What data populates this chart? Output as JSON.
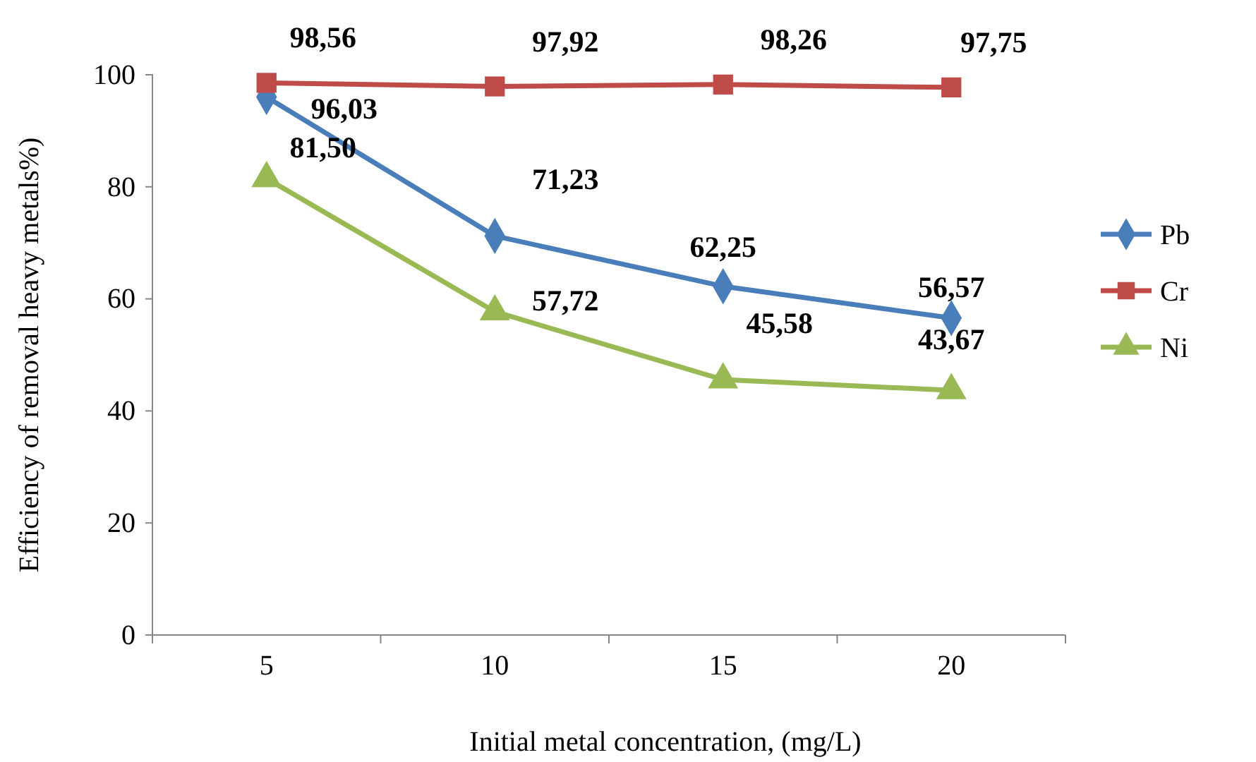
{
  "chart_data": {
    "type": "line",
    "xlabel": "Initial  metal concentration, (mg/L)",
    "ylabel": "Efficiency of removal heavy metals%)",
    "categories": [
      "5",
      "10",
      "15",
      "20"
    ],
    "ylim": [
      0,
      100
    ],
    "yticks": [
      0,
      20,
      40,
      60,
      80,
      100
    ],
    "grid": false,
    "legend": "right",
    "line_style": "solid",
    "series": [
      {
        "name": "Pb",
        "color": "#4a7ebb",
        "marker": "diamond",
        "values": [
          96.03,
          71.23,
          62.25,
          56.57
        ],
        "value_labels": [
          "96,03",
          "71,23",
          "62,25",
          "56,57"
        ]
      },
      {
        "name": "Cr",
        "color": "#be4b48",
        "marker": "square",
        "values": [
          98.56,
          97.92,
          98.26,
          97.75
        ],
        "value_labels": [
          "98,56",
          "97,92",
          "98,26",
          "97,75"
        ]
      },
      {
        "name": "Ni",
        "color": "#98b954",
        "marker": "triangle",
        "values": [
          81.5,
          57.72,
          45.58,
          43.67
        ],
        "value_labels": [
          "81,50",
          "57,72",
          "45,58",
          "43,67"
        ]
      }
    ]
  }
}
